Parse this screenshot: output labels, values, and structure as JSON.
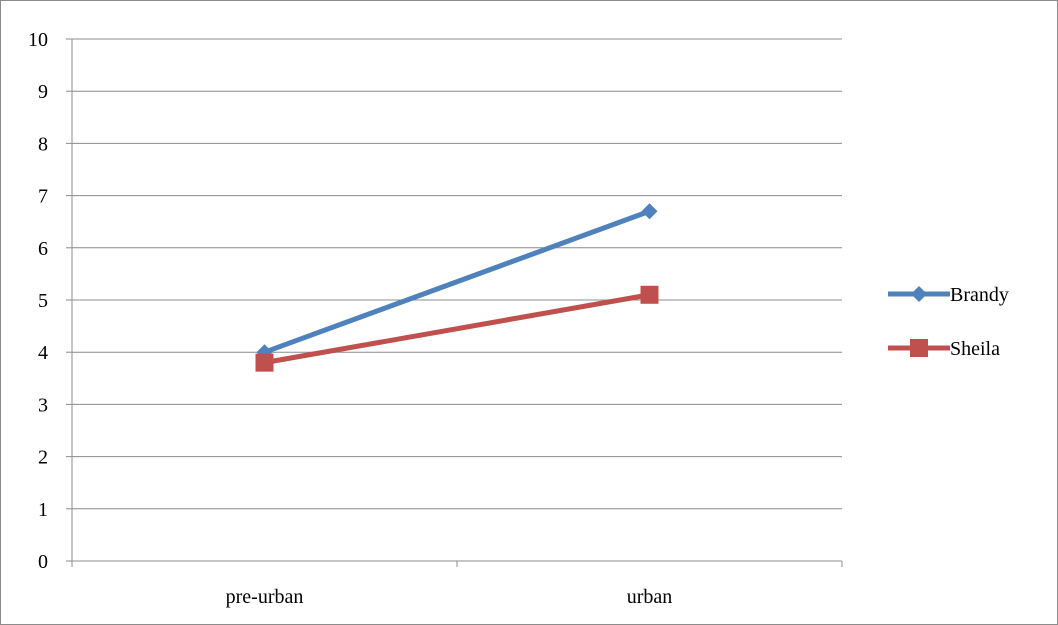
{
  "chart_data": {
    "type": "line",
    "title": "",
    "xlabel": "",
    "ylabel": "",
    "categories": [
      "pre-urban",
      "urban"
    ],
    "ylim": [
      0,
      10
    ],
    "yticks": [
      0,
      1,
      2,
      3,
      4,
      5,
      6,
      7,
      8,
      9,
      10
    ],
    "grid": "horizontal",
    "legend_position": "right",
    "series": [
      {
        "name": "Brandy",
        "values": [
          4.0,
          6.7
        ],
        "color": "#4f81bd",
        "marker": "diamond"
      },
      {
        "name": "Sheila",
        "values": [
          3.8,
          5.1
        ],
        "color": "#c0504d",
        "marker": "square"
      }
    ]
  }
}
